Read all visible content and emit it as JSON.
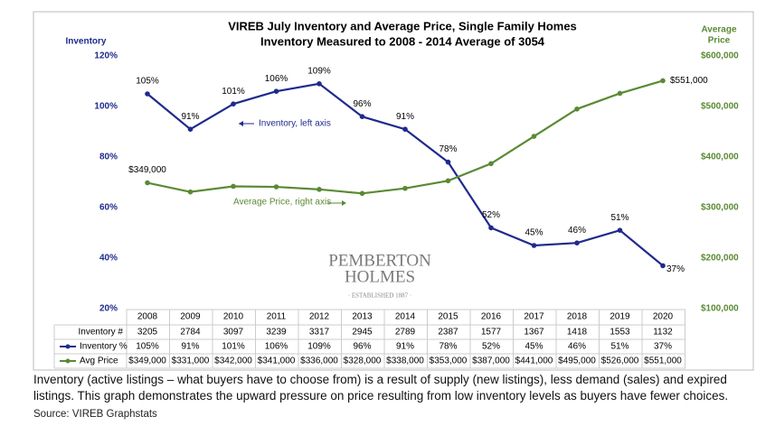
{
  "chart_data": {
    "type": "line",
    "title": "VIREB July Inventory and Average Price, Single Family Homes",
    "subtitle": "Inventory Measured to 2008 - 2014 Average of 3054",
    "y_label": "Inventory",
    "y2_label": [
      "Average",
      "Price"
    ],
    "categories": [
      "2008",
      "2009",
      "2010",
      "2011",
      "2012",
      "2013",
      "2014",
      "2015",
      "2016",
      "2017",
      "2018",
      "2019",
      "2020"
    ],
    "ylim": [
      20,
      120
    ],
    "yticks": [
      {
        "value": 20,
        "label": "20%"
      },
      {
        "value": 40,
        "label": "40%"
      },
      {
        "value": 60,
        "label": "60%"
      },
      {
        "value": 80,
        "label": "80%"
      },
      {
        "value": 100,
        "label": "100%"
      },
      {
        "value": 120,
        "label": "120%"
      }
    ],
    "y2lim": [
      100000,
      600000
    ],
    "y2ticks": [
      {
        "value": 100000,
        "label": "$100,000"
      },
      {
        "value": 200000,
        "label": "$200,000"
      },
      {
        "value": 300000,
        "label": "$300,000"
      },
      {
        "value": 400000,
        "label": "$400,000"
      },
      {
        "value": 500000,
        "label": "$500,000"
      },
      {
        "value": 600000,
        "label": "$600,000"
      }
    ],
    "series": [
      {
        "name": "Inventory %",
        "color": "#1f2a8c",
        "values": [
          105,
          91,
          101,
          106,
          109,
          96,
          91,
          78,
          52,
          45,
          46,
          51,
          37
        ],
        "value_labels": [
          "105%",
          "91%",
          "101%",
          "106%",
          "109%",
          "96%",
          "91%",
          "78%",
          "52%",
          "45%",
          "46%",
          "51%",
          "37%"
        ]
      },
      {
        "name": "Avg Price",
        "color": "#5a8a34",
        "axis": "y2",
        "values": [
          349000,
          331000,
          342000,
          341000,
          336000,
          328000,
          338000,
          353000,
          387000,
          441000,
          495000,
          526000,
          551000
        ],
        "value_labels": [
          "$349,000",
          "$331,000",
          "$342,000",
          "$341,000",
          "$336,000",
          "$328,000",
          "$338,000",
          "$353,000",
          "$387,000",
          "$441,000",
          "$495,000",
          "$526,000",
          "$551,000"
        ]
      }
    ],
    "table_row": {
      "name": "Inventory #",
      "values": [
        3205,
        2784,
        3097,
        3239,
        3317,
        2945,
        2789,
        2387,
        1577,
        1367,
        1418,
        1553,
        1132
      ]
    },
    "annotations": [
      "Inventory, left axis",
      "Average Price, right axis"
    ]
  },
  "logo": {
    "line1": "PEMBERTON",
    "line2": "HOLMES",
    "tagline": "· ESTABLISHED 1887 ·"
  },
  "caption": "Inventory (active listings – what buyers have to choose from) is a result of supply (new listings), less demand (sales) and expired listings.  This graph demonstrates the upward pressure on price resulting from low inventory levels as buyers have fewer choices.",
  "source": "Source: VIREB Graphstats"
}
